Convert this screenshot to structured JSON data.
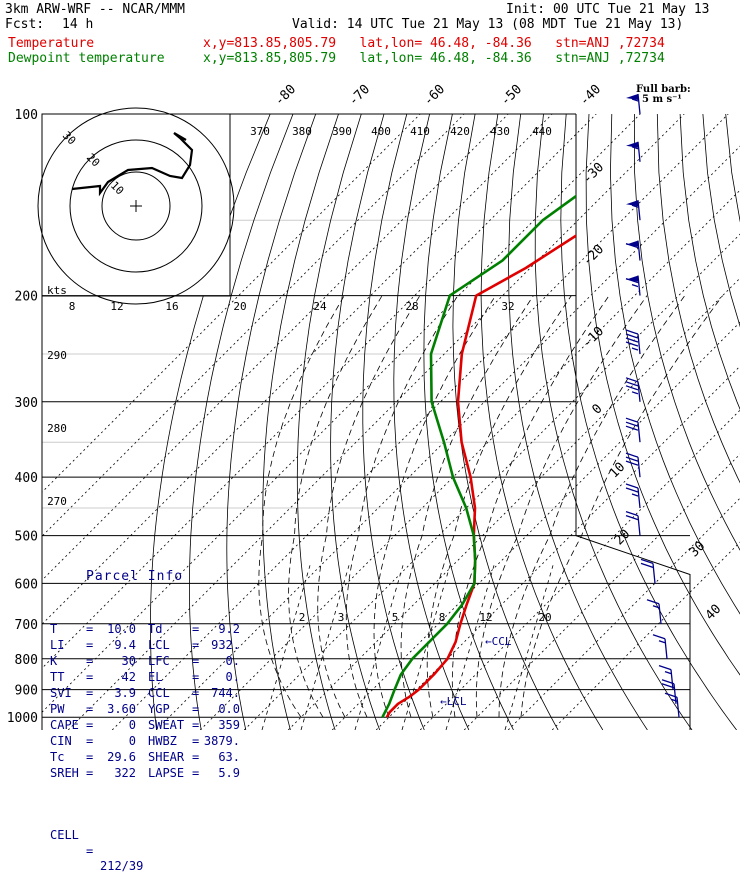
{
  "header": {
    "model": "3km ARW-WRF -- NCAR/MMM",
    "init": "Init: 00 UTC Tue 21 May 13",
    "fcst_label": "Fcst:",
    "fcst_value": "14 h",
    "valid": "Valid: 14 UTC Tue 21 May 13 (08 MDT Tue 21 May 13)",
    "temp_label": "Temperature",
    "temp_info": "x,y=813.85,805.79   lat,lon= 46.48, -84.36   stn=ANJ ,72734",
    "dew_label": "Dewpoint temperature",
    "dew_info": "x,y=813.85,805.79   lat,lon= 46.48, -84.36   stn=ANJ ,72734",
    "full_barb": "Full barb:",
    "full_barb_val": "5 m s⁻¹"
  },
  "chart_data": {
    "type": "line",
    "title": "Skew-T log-P sounding",
    "y_axis": "pressure (hPa), log scale",
    "pressure_ticks": [
      100,
      200,
      300,
      400,
      500,
      600,
      700,
      800,
      900,
      1000
    ],
    "isotherm_labels": [
      "-80",
      "-70",
      "-60",
      "-50",
      "-40",
      "-30",
      "-20",
      "-10",
      "0",
      "10",
      "20",
      "30",
      "40"
    ],
    "theta_labels": [
      "370",
      "380",
      "390",
      "400",
      "410",
      "420",
      "430",
      "440",
      "290",
      "280",
      "270"
    ],
    "mixing_ratio_labels": [
      "2",
      "3",
      "5",
      "8",
      "12",
      "20"
    ],
    "hodograph_speed_labels": [
      "8",
      "12",
      "16",
      "20",
      "24",
      "28",
      "32"
    ],
    "hodograph_rings": [
      "10",
      "20",
      "30"
    ],
    "hodograph_units": "kts",
    "ccl_label": "CCL",
    "lcl_label": "LCL",
    "series": [
      {
        "name": "Temperature",
        "color": "#e00000",
        "points": [
          [
            100,
            -52.5
          ],
          [
            120,
            -55
          ],
          [
            150,
            -55
          ],
          [
            180,
            -61
          ],
          [
            200,
            -66
          ],
          [
            250,
            -56
          ],
          [
            300,
            -46
          ],
          [
            350,
            -36
          ],
          [
            400,
            -26
          ],
          [
            450,
            -18
          ],
          [
            500,
            -12
          ],
          [
            550,
            -6
          ],
          [
            600,
            -1
          ],
          [
            650,
            2
          ],
          [
            700,
            5
          ],
          [
            750,
            8
          ],
          [
            800,
            10
          ],
          [
            850,
            10.5
          ],
          [
            900,
            10.5
          ],
          [
            925,
            10
          ],
          [
            950,
            9
          ],
          [
            980,
            9
          ],
          [
            1000,
            9.5
          ]
        ]
      },
      {
        "name": "Dewpoint temperature",
        "color": "#008000",
        "points": [
          [
            100,
            -62
          ],
          [
            120,
            -63
          ],
          [
            150,
            -68
          ],
          [
            175,
            -68
          ],
          [
            200,
            -72
          ],
          [
            250,
            -63
          ],
          [
            300,
            -52
          ],
          [
            350,
            -40
          ],
          [
            400,
            -30
          ],
          [
            450,
            -20
          ],
          [
            500,
            -12
          ],
          [
            550,
            -6
          ],
          [
            600,
            -1
          ],
          [
            650,
            1
          ],
          [
            700,
            2
          ],
          [
            750,
            2
          ],
          [
            800,
            2
          ],
          [
            850,
            3
          ],
          [
            900,
            5
          ],
          [
            950,
            7
          ],
          [
            1000,
            8.5
          ]
        ]
      }
    ],
    "wind_barbs": [
      {
        "p": 100,
        "speed": 55
      },
      {
        "p": 120,
        "speed": 55
      },
      {
        "p": 150,
        "speed": 55
      },
      {
        "p": 175,
        "speed": 60
      },
      {
        "p": 200,
        "speed": 65
      },
      {
        "p": 250,
        "speed": 45
      },
      {
        "p": 300,
        "speed": 35
      },
      {
        "p": 350,
        "speed": 30
      },
      {
        "p": 400,
        "speed": 30
      },
      {
        "p": 450,
        "speed": 25
      },
      {
        "p": 500,
        "speed": 20
      },
      {
        "p": 600,
        "speed": 20
      },
      {
        "p": 700,
        "speed": 15
      },
      {
        "p": 800,
        "speed": 15
      },
      {
        "p": 900,
        "speed": 15
      },
      {
        "p": 950,
        "speed": 20
      },
      {
        "p": 1000,
        "speed": 15
      }
    ]
  },
  "parcel": {
    "title": "Parcel Info",
    "rows": [
      [
        [
          "T",
          "10.0"
        ],
        [
          "Td",
          "9.2"
        ]
      ],
      [
        [
          "LI",
          "9.4"
        ],
        [
          "LCL",
          "932."
        ]
      ],
      [
        [
          "K",
          "30"
        ],
        [
          "LFC",
          "0."
        ]
      ],
      [
        [
          "TT",
          "42"
        ],
        [
          "EL",
          "0."
        ]
      ],
      [
        [
          "SVI",
          "3.9"
        ],
        [
          "CCL",
          "744."
        ]
      ],
      [
        [
          "PW",
          "3.60"
        ],
        [
          "YGP",
          "0.0"
        ]
      ],
      [
        [
          "CAPE",
          "0"
        ],
        [
          "SWEAT",
          "359"
        ]
      ],
      [
        [
          "CIN",
          "0"
        ],
        [
          "HWBZ",
          "3879."
        ]
      ],
      [
        [
          "Tc",
          "29.6"
        ],
        [
          "SHEAR",
          "63."
        ]
      ],
      [
        [
          "SREH",
          "322"
        ],
        [
          "LAPSE",
          "5.9"
        ]
      ]
    ],
    "cell_label": "CELL",
    "cell_value": "212/39"
  }
}
